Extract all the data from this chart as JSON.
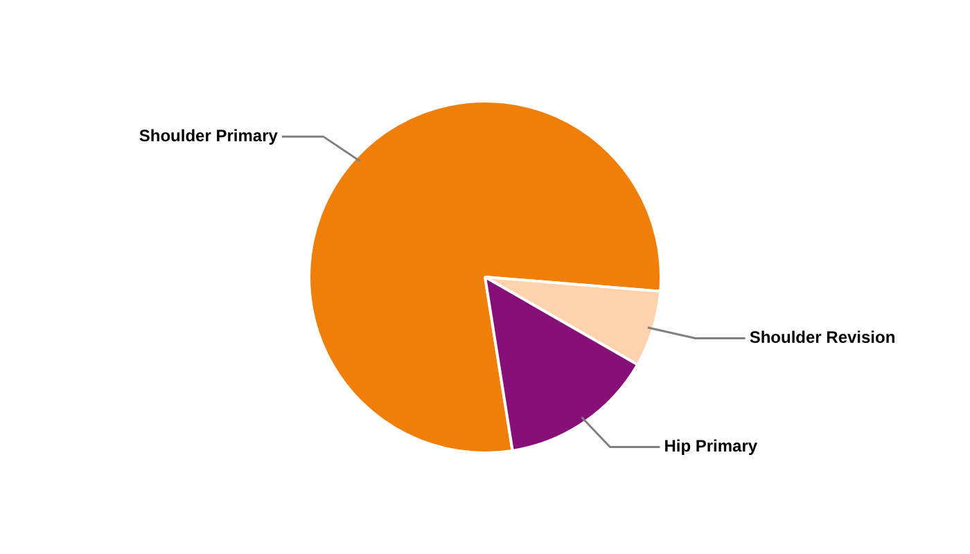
{
  "chart_data": {
    "type": "pie",
    "categories": [
      "Shoulder Primary",
      "Shoulder Revision",
      "Hip Primary"
    ],
    "values": [
      78.8,
      7,
      14.2
    ],
    "colors": [
      "#f07f09",
      "#fcd3ad",
      "#861078"
    ]
  }
}
